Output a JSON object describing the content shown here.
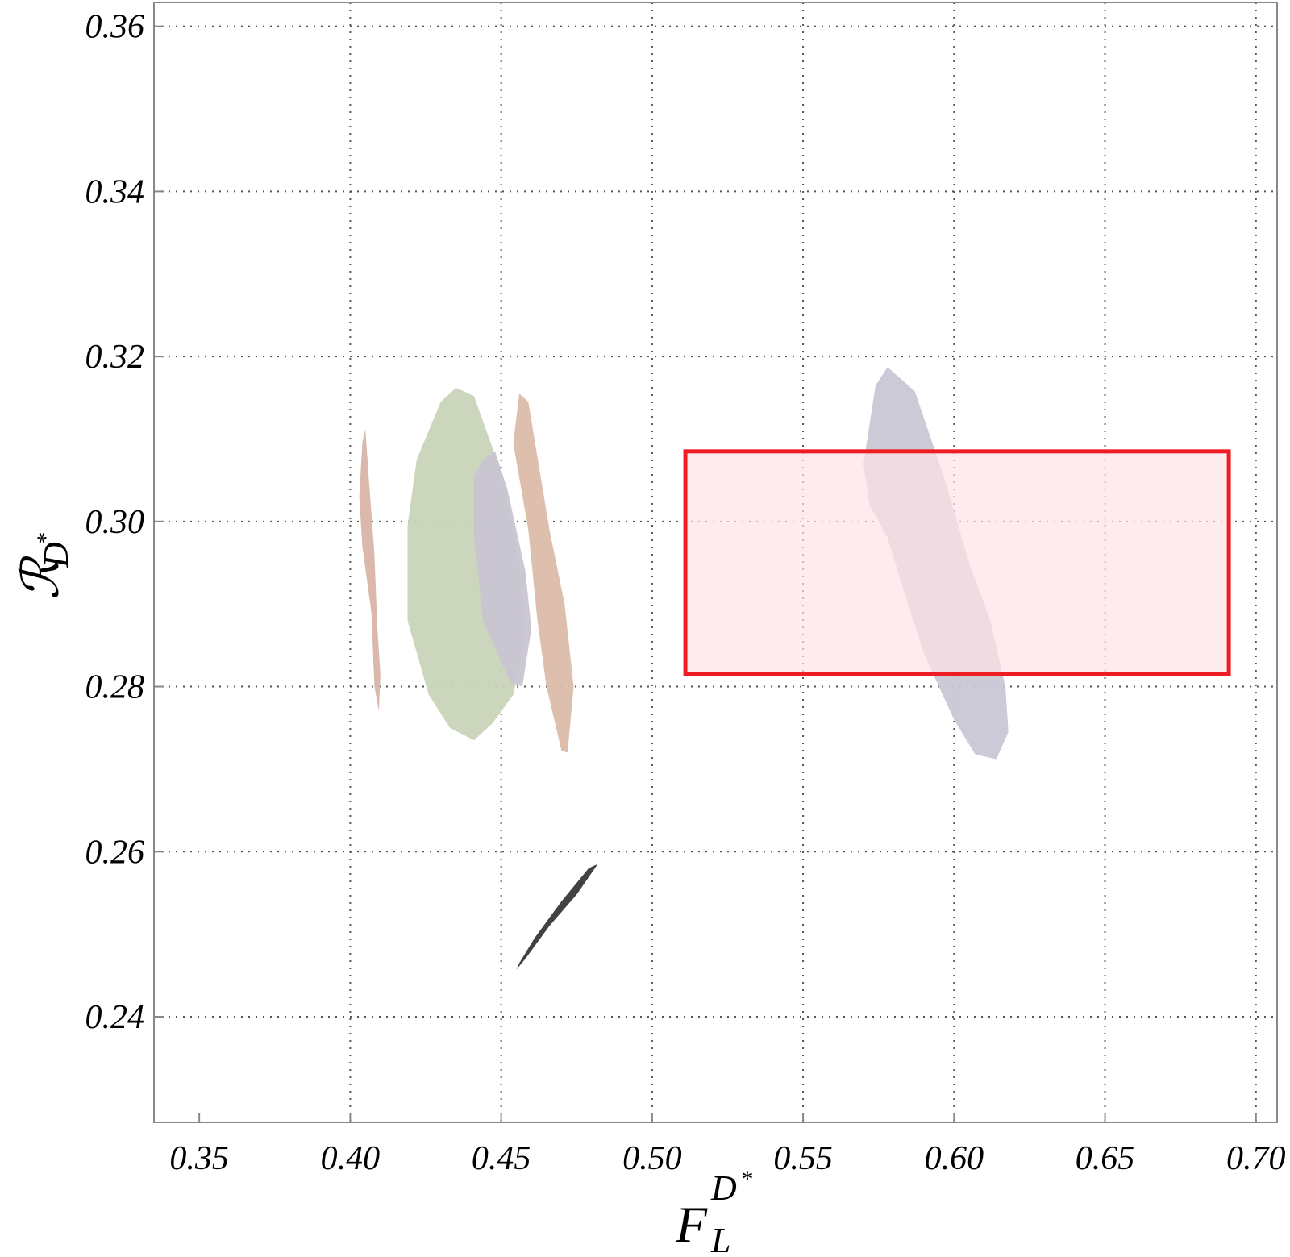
{
  "chart_data": {
    "type": "contour-regions",
    "title": "",
    "x_axis": {
      "label_base": "F",
      "label_sub": "L",
      "label_sup": "D",
      "label_sup_star": "*",
      "range": [
        0.335,
        0.707
      ],
      "ticks": [
        0.35,
        0.4,
        0.45,
        0.5,
        0.55,
        0.6,
        0.65,
        0.7
      ],
      "tick_labels": [
        "0.35",
        "0.40",
        "0.45",
        "0.50",
        "0.55",
        "0.60",
        "0.65",
        "0.70"
      ]
    },
    "y_axis": {
      "label_base": "ℛ",
      "label_sub": "D",
      "label_sub_star": "*",
      "range": [
        0.2272,
        0.3629
      ],
      "ticks": [
        0.24,
        0.26,
        0.28,
        0.3,
        0.32,
        0.34,
        0.36
      ],
      "tick_labels": [
        "0.24",
        "0.26",
        "0.28",
        "0.30",
        "0.32",
        "0.34",
        "0.36"
      ]
    },
    "grid": true,
    "regions": [
      {
        "name": "green-region",
        "color": "#c9d4b8",
        "points": [
          [
            0.419,
            0.2995
          ],
          [
            0.422,
            0.3075
          ],
          [
            0.43,
            0.3145
          ],
          [
            0.435,
            0.3162
          ],
          [
            0.441,
            0.3152
          ],
          [
            0.449,
            0.307
          ],
          [
            0.456,
            0.295
          ],
          [
            0.458,
            0.286
          ],
          [
            0.454,
            0.279
          ],
          [
            0.447,
            0.2755
          ],
          [
            0.441,
            0.2735
          ],
          [
            0.433,
            0.275
          ],
          [
            0.426,
            0.279
          ],
          [
            0.419,
            0.288
          ]
        ]
      },
      {
        "name": "purple-small-region",
        "color": "#c8c5d2",
        "points": [
          [
            0.441,
            0.3055
          ],
          [
            0.444,
            0.3075
          ],
          [
            0.448,
            0.3085
          ],
          [
            0.452,
            0.304
          ],
          [
            0.458,
            0.294
          ],
          [
            0.46,
            0.287
          ],
          [
            0.457,
            0.28
          ],
          [
            0.453,
            0.2805
          ],
          [
            0.444,
            0.288
          ],
          [
            0.441,
            0.298
          ]
        ]
      },
      {
        "name": "brown-right-region",
        "color": "#dcbba9",
        "points": [
          [
            0.454,
            0.3095
          ],
          [
            0.456,
            0.3155
          ],
          [
            0.459,
            0.3145
          ],
          [
            0.466,
            0.299
          ],
          [
            0.471,
            0.29
          ],
          [
            0.474,
            0.28
          ],
          [
            0.472,
            0.272
          ],
          [
            0.47,
            0.2722
          ],
          [
            0.465,
            0.28
          ],
          [
            0.462,
            0.288
          ],
          [
            0.459,
            0.299
          ]
        ]
      },
      {
        "name": "brown-left-thin-region",
        "color": "#d8b5a8",
        "points": [
          [
            0.403,
            0.303
          ],
          [
            0.404,
            0.3095
          ],
          [
            0.405,
            0.3112
          ],
          [
            0.406,
            0.306
          ],
          [
            0.408,
            0.296
          ],
          [
            0.409,
            0.287
          ],
          [
            0.41,
            0.2815
          ],
          [
            0.4095,
            0.277
          ],
          [
            0.408,
            0.28
          ],
          [
            0.407,
            0.289
          ],
          [
            0.404,
            0.297
          ]
        ]
      },
      {
        "name": "purple-large-region",
        "color": "#c9c7d5",
        "points": [
          [
            0.57,
            0.307
          ],
          [
            0.574,
            0.3165
          ],
          [
            0.578,
            0.3187
          ],
          [
            0.587,
            0.3158
          ],
          [
            0.597,
            0.305
          ],
          [
            0.605,
            0.295
          ],
          [
            0.612,
            0.288
          ],
          [
            0.617,
            0.28
          ],
          [
            0.618,
            0.2745
          ],
          [
            0.614,
            0.2712
          ],
          [
            0.607,
            0.2718
          ],
          [
            0.6,
            0.276
          ],
          [
            0.59,
            0.284
          ],
          [
            0.583,
            0.292
          ],
          [
            0.578,
            0.298
          ],
          [
            0.572,
            0.302
          ]
        ]
      },
      {
        "name": "black-ellipse-region",
        "color": "#424242",
        "points": [
          [
            0.455,
            0.2457
          ],
          [
            0.458,
            0.247
          ],
          [
            0.466,
            0.251
          ],
          [
            0.475,
            0.2548
          ],
          [
            0.482,
            0.2585
          ],
          [
            0.479,
            0.258
          ],
          [
            0.47,
            0.254
          ],
          [
            0.461,
            0.2495
          ],
          [
            0.456,
            0.2465
          ]
        ]
      }
    ],
    "box": {
      "name": "measurement-box",
      "x_range": [
        0.511,
        0.691
      ],
      "y_range": [
        0.2815,
        0.3085
      ],
      "fill": "#fde3e5",
      "stroke": "#ee1c23"
    }
  }
}
